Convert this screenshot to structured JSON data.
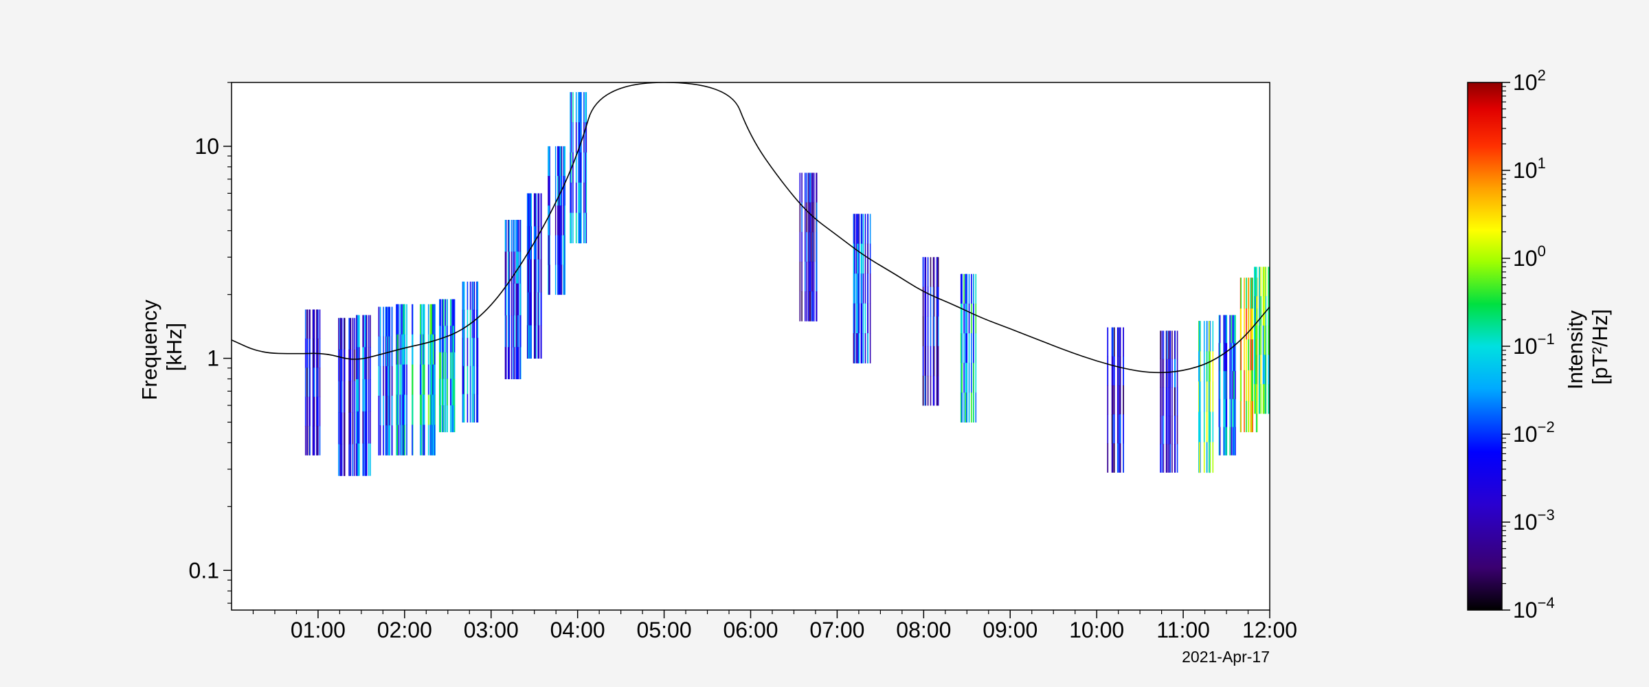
{
  "chart_data": {
    "type": "heatmap",
    "title": "",
    "x": {
      "range": [
        "00:00",
        "12:00"
      ],
      "tick_labels": [
        "01:00",
        "02:00",
        "03:00",
        "04:00",
        "05:00",
        "06:00",
        "07:00",
        "08:00",
        "09:00",
        "10:00",
        "11:00",
        "12:00"
      ],
      "date_label": "2021-Apr-17"
    },
    "y": {
      "label_line1": "Frequency",
      "label_line2": "[kHz]",
      "scale": "log",
      "range": [
        0.065,
        20
      ],
      "tick_labels": [
        "0.1",
        "1",
        "10"
      ]
    },
    "colorbar": {
      "label_line1": "Intensity",
      "label_line2": "[pT²/Hz]",
      "scale": "log",
      "range": [
        0.0001,
        100
      ],
      "tick_labels": [
        {
          "base": "10",
          "exp": "2"
        },
        {
          "base": "10",
          "exp": "1"
        },
        {
          "base": "10",
          "exp": "0"
        },
        {
          "base": "10",
          "exp": "−1"
        },
        {
          "base": "10",
          "exp": "−2"
        },
        {
          "base": "10",
          "exp": "−3"
        },
        {
          "base": "10",
          "exp": "−4"
        }
      ]
    },
    "spectrogram_columns": [
      {
        "t": "00:55",
        "fmin": 0.35,
        "fmax": 1.7,
        "level": 0.003
      },
      {
        "t": "01:20",
        "fmin": 0.28,
        "fmax": 1.55,
        "level": 0.003
      },
      {
        "t": "01:30",
        "fmin": 0.28,
        "fmax": 1.6,
        "level": 0.01
      },
      {
        "t": "01:45",
        "fmin": 0.35,
        "fmax": 1.75,
        "level": 0.01
      },
      {
        "t": "02:00",
        "fmin": 0.35,
        "fmax": 1.8,
        "level": 0.05
      },
      {
        "t": "02:15",
        "fmin": 0.35,
        "fmax": 1.8,
        "level": 0.1
      },
      {
        "t": "02:30",
        "fmin": 0.45,
        "fmax": 1.9,
        "level": 0.05
      },
      {
        "t": "02:45",
        "fmin": 0.5,
        "fmax": 2.3,
        "level": 0.02
      },
      {
        "t": "03:15",
        "fmin": 0.8,
        "fmax": 4.5,
        "level": 0.01
      },
      {
        "t": "03:30",
        "fmin": 1.0,
        "fmax": 6.0,
        "level": 0.01
      },
      {
        "t": "03:45",
        "fmin": 2.0,
        "fmax": 10.0,
        "level": 0.01
      },
      {
        "t": "04:00",
        "fmin": 3.5,
        "fmax": 18.0,
        "level": 0.02
      },
      {
        "t": "06:40",
        "fmin": 1.5,
        "fmax": 7.5,
        "level": 0.003
      },
      {
        "t": "07:17",
        "fmin": 0.95,
        "fmax": 4.8,
        "level": 0.01
      },
      {
        "t": "08:05",
        "fmin": 0.6,
        "fmax": 3.0,
        "level": 0.003
      },
      {
        "t": "08:30",
        "fmin": 0.5,
        "fmax": 2.5,
        "level": 0.05
      },
      {
        "t": "10:12",
        "fmin": 0.29,
        "fmax": 1.4,
        "level": 0.003
      },
      {
        "t": "10:50",
        "fmin": 0.29,
        "fmax": 1.35,
        "level": 0.003
      },
      {
        "t": "11:15",
        "fmin": 0.29,
        "fmax": 1.5,
        "level": 0.3
      },
      {
        "t": "11:30",
        "fmin": 0.35,
        "fmax": 1.6,
        "level": 0.03
      },
      {
        "t": "11:45",
        "fmin": 0.45,
        "fmax": 2.4,
        "level": 3.0
      },
      {
        "t": "11:55",
        "fmin": 0.55,
        "fmax": 2.7,
        "level": 0.3
      }
    ],
    "line_series": {
      "points": [
        {
          "t": "00:00",
          "f": 1.22
        },
        {
          "t": "00:20",
          "f": 1.06
        },
        {
          "t": "00:45",
          "f": 1.05
        },
        {
          "t": "01:05",
          "f": 1.06
        },
        {
          "t": "01:25",
          "f": 0.97
        },
        {
          "t": "01:45",
          "f": 1.05
        },
        {
          "t": "02:00",
          "f": 1.12
        },
        {
          "t": "02:20",
          "f": 1.2
        },
        {
          "t": "02:40",
          "f": 1.35
        },
        {
          "t": "03:00",
          "f": 1.75
        },
        {
          "t": "03:20",
          "f": 2.7
        },
        {
          "t": "03:40",
          "f": 4.6
        },
        {
          "t": "04:00",
          "f": 9.0
        },
        {
          "t": "04:15",
          "f": 20.0
        },
        {
          "t": "05:45",
          "f": 20.0
        },
        {
          "t": "06:00",
          "f": 11.0
        },
        {
          "t": "06:20",
          "f": 7.0
        },
        {
          "t": "06:40",
          "f": 4.8
        },
        {
          "t": "07:00",
          "f": 3.8
        },
        {
          "t": "07:20",
          "f": 3.0
        },
        {
          "t": "07:40",
          "f": 2.5
        },
        {
          "t": "08:00",
          "f": 2.05
        },
        {
          "t": "08:20",
          "f": 1.8
        },
        {
          "t": "08:40",
          "f": 1.55
        },
        {
          "t": "09:00",
          "f": 1.38
        },
        {
          "t": "09:20",
          "f": 1.22
        },
        {
          "t": "09:40",
          "f": 1.08
        },
        {
          "t": "10:00",
          "f": 0.97
        },
        {
          "t": "10:20",
          "f": 0.89
        },
        {
          "t": "10:40",
          "f": 0.85
        },
        {
          "t": "11:00",
          "f": 0.87
        },
        {
          "t": "11:20",
          "f": 0.96
        },
        {
          "t": "11:40",
          "f": 1.2
        },
        {
          "t": "12:00",
          "f": 1.75
        }
      ]
    }
  }
}
